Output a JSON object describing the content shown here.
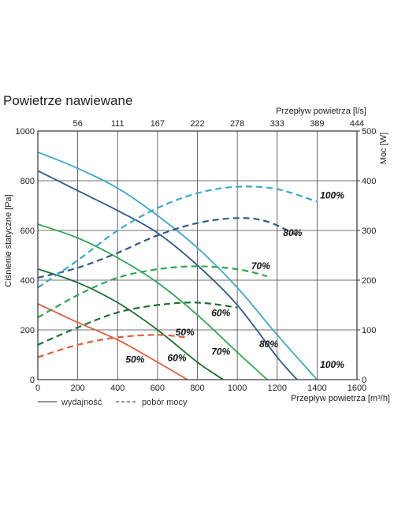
{
  "page": {
    "title": "Powietrze nawiewane"
  },
  "chart_data": {
    "type": "line",
    "title": "Powietrze nawiewane",
    "xlabel": "Przepływ powietrza [m³/h]",
    "x2label": "Przepływ powietrza [l/s]",
    "ylabel": "Ciśnienie statyczne [Pa]",
    "y2label": "Moc [W]",
    "xlim": [
      0,
      1600
    ],
    "ylim": [
      0,
      1000
    ],
    "y2lim": [
      0,
      500
    ],
    "grid": true,
    "x_ticks": [
      0,
      200,
      400,
      600,
      800,
      1000,
      1200,
      1400,
      1600
    ],
    "x2_ticks": [
      "56",
      "111",
      "167",
      "222",
      "278",
      "333",
      "389",
      "444"
    ],
    "y_ticks": [
      0,
      200,
      400,
      600,
      800,
      1000
    ],
    "y2_ticks": [
      0,
      100,
      200,
      300,
      400,
      500
    ],
    "legend": {
      "solid": "wydajność",
      "dashed": "pobór mocy"
    },
    "series": [
      {
        "name": "50%",
        "kind": "wydajność",
        "axis": "left",
        "color": "#e0603a",
        "x": [
          0,
          200,
          400,
          600,
          750
        ],
        "y": [
          305,
          230,
          160,
          70,
          0
        ]
      },
      {
        "name": "60%",
        "kind": "wydajność",
        "axis": "left",
        "color": "#1e6e33",
        "x": [
          0,
          200,
          400,
          600,
          800,
          930
        ],
        "y": [
          445,
          390,
          310,
          200,
          70,
          0
        ]
      },
      {
        "name": "70%",
        "kind": "wydajność",
        "axis": "left",
        "color": "#2fa84d",
        "x": [
          0,
          200,
          400,
          600,
          800,
          1000,
          1150
        ],
        "y": [
          625,
          570,
          490,
          390,
          260,
          110,
          0
        ]
      },
      {
        "name": "80%",
        "kind": "wydajność",
        "axis": "left",
        "color": "#2f5b8c",
        "x": [
          0,
          200,
          400,
          600,
          800,
          1000,
          1200,
          1300
        ],
        "y": [
          840,
          760,
          680,
          590,
          460,
          300,
          90,
          0
        ]
      },
      {
        "name": "100%",
        "kind": "wydajność",
        "axis": "left",
        "color": "#3aa9c9",
        "x": [
          0,
          200,
          400,
          600,
          800,
          1000,
          1200,
          1400
        ],
        "y": [
          915,
          850,
          770,
          660,
          530,
          370,
          180,
          0
        ]
      },
      {
        "name": "50%",
        "kind": "pobór mocy",
        "axis": "right",
        "color": "#e0603a",
        "x": [
          0,
          200,
          400,
          600,
          740
        ],
        "y": [
          45,
          70,
          85,
          90,
          85
        ]
      },
      {
        "name": "60%",
        "kind": "pobór mocy",
        "axis": "right",
        "color": "#1e6e33",
        "x": [
          0,
          200,
          400,
          600,
          800,
          1000
        ],
        "y": [
          70,
          105,
          135,
          150,
          155,
          145
        ]
      },
      {
        "name": "70%",
        "kind": "pobór mocy",
        "axis": "right",
        "color": "#2fa84d",
        "x": [
          0,
          200,
          400,
          600,
          800,
          1000,
          1150
        ],
        "y": [
          125,
          170,
          205,
          222,
          228,
          222,
          208
        ]
      },
      {
        "name": "80%",
        "kind": "pobór mocy",
        "axis": "right",
        "color": "#2f5b8c",
        "x": [
          0,
          200,
          400,
          600,
          800,
          1000,
          1150,
          1300
        ],
        "y": [
          205,
          225,
          255,
          290,
          315,
          325,
          318,
          290
        ]
      },
      {
        "name": "100%",
        "kind": "pobór mocy",
        "axis": "right",
        "color": "#3aa9c9",
        "x": [
          0,
          200,
          400,
          600,
          800,
          1000,
          1200,
          1400
        ],
        "y": [
          185,
          240,
          300,
          345,
          375,
          388,
          383,
          358
        ]
      }
    ],
    "annotations": [
      "100%",
      "80%",
      "70%",
      "60%",
      "50%",
      "50%",
      "60%",
      "70%",
      "80%",
      "100%"
    ]
  }
}
